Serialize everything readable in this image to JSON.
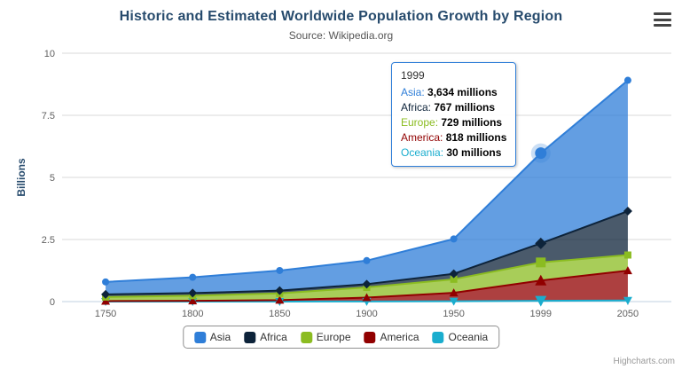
{
  "chart": {
    "title": "Historic and Estimated Worldwide Population Growth by Region",
    "subtitle": "Source: Wikipedia.org",
    "credits": "Highcharts.com"
  },
  "chart_data": {
    "type": "area",
    "stacked": true,
    "title": "Historic and Estimated Worldwide Population Growth by Region",
    "subtitle": "Source: Wikipedia.org",
    "xlabel": "",
    "ylabel": "Billions",
    "ylim": [
      0,
      10
    ],
    "yticks": [
      0,
      2.5,
      5,
      7.5,
      10
    ],
    "grid": true,
    "legend_position": "bottom",
    "categories": [
      "1750",
      "1800",
      "1850",
      "1900",
      "1950",
      "1999",
      "2050"
    ],
    "values_unit": "millions",
    "series": [
      {
        "name": "Asia",
        "color": "#2f7ed8",
        "marker": "circle",
        "values": [
          502,
          635,
          809,
          947,
          1402,
          3634,
          5268
        ]
      },
      {
        "name": "Africa",
        "color": "#0d233a",
        "marker": "diamond",
        "values": [
          106,
          107,
          111,
          133,
          221,
          767,
          1766
        ]
      },
      {
        "name": "Europe",
        "color": "#8bbc21",
        "marker": "square",
        "values": [
          163,
          203,
          276,
          408,
          547,
          729,
          628
        ]
      },
      {
        "name": "America",
        "color": "#910000",
        "marker": "triangle",
        "values": [
          18,
          31,
          54,
          156,
          339,
          818,
          1201
        ]
      },
      {
        "name": "Oceania",
        "color": "#1aadce",
        "marker": "triangle-down",
        "values": [
          2,
          2,
          2,
          6,
          13,
          30,
          46
        ]
      }
    ]
  },
  "tooltip": {
    "header": "1999",
    "point_index": 5,
    "rows": [
      {
        "label": "Asia",
        "value": "3,634 millions",
        "color": "#2f7ed8"
      },
      {
        "label": "Africa",
        "value": "767 millions",
        "color": "#0d233a"
      },
      {
        "label": "Europe",
        "value": "729 millions",
        "color": "#8bbc21"
      },
      {
        "label": "America",
        "value": "818 millions",
        "color": "#910000"
      },
      {
        "label": "Oceania",
        "value": "30 millions",
        "color": "#1aadce"
      }
    ]
  },
  "legend": {
    "items": [
      {
        "label": "Asia",
        "color": "#2f7ed8"
      },
      {
        "label": "Africa",
        "color": "#0d233a"
      },
      {
        "label": "Europe",
        "color": "#8bbc21"
      },
      {
        "label": "America",
        "color": "#910000"
      },
      {
        "label": "Oceania",
        "color": "#1aadce"
      }
    ]
  },
  "axes": {
    "grid_color": "#d8d8d8",
    "axis_line_color": "#c0d0e0",
    "label_color": "#606060",
    "y_title_color": "#274b6d"
  }
}
